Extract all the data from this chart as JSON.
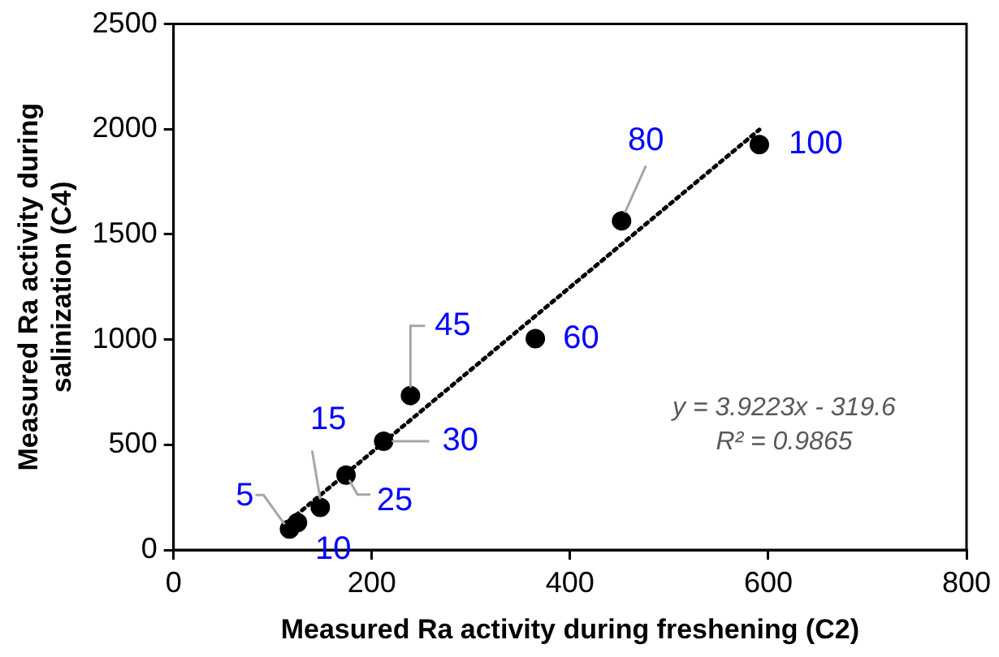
{
  "chart_data": {
    "type": "scatter",
    "xlabel": "Measured Ra activity during freshening (C2)",
    "ylabel": "Measured Ra activity during salinization (C4)",
    "xlim": [
      0,
      800
    ],
    "xticks": [
      0,
      200,
      400,
      600,
      800
    ],
    "ylim": [
      0,
      2500
    ],
    "yticks": [
      0,
      500,
      1000,
      1500,
      2000,
      2500
    ],
    "grid": false,
    "legend": false,
    "marker": "circle",
    "series": [
      {
        "type": "scatter",
        "color": "#000000",
        "x": [
          117,
          125,
          148,
          174,
          212,
          239,
          365,
          452,
          591
        ],
        "values": [
          99,
          130,
          202,
          356,
          517,
          734,
          1004,
          1564,
          1927
        ]
      },
      {
        "type": "line",
        "color": "#000000",
        "line_style": "dotted",
        "marker": "none",
        "x": [
          117,
          591
        ],
        "values": [
          139,
          1998
        ]
      }
    ],
    "annotations": [
      {
        "text": "5",
        "x": 117,
        "y": 99
      },
      {
        "text": "10",
        "x": 125,
        "y": 130
      },
      {
        "text": "15",
        "x": 148,
        "y": 202
      },
      {
        "text": "25",
        "x": 174,
        "y": 356
      },
      {
        "text": "30",
        "x": 212,
        "y": 517
      },
      {
        "text": "45",
        "x": 239,
        "y": 734
      },
      {
        "text": "60",
        "x": 365,
        "y": 1004
      },
      {
        "text": "80",
        "x": 452,
        "y": 1564
      },
      {
        "text": "100",
        "x": 591,
        "y": 1927
      },
      "y = 3.9223x - 319.6",
      "R² = 0.9865"
    ]
  }
}
